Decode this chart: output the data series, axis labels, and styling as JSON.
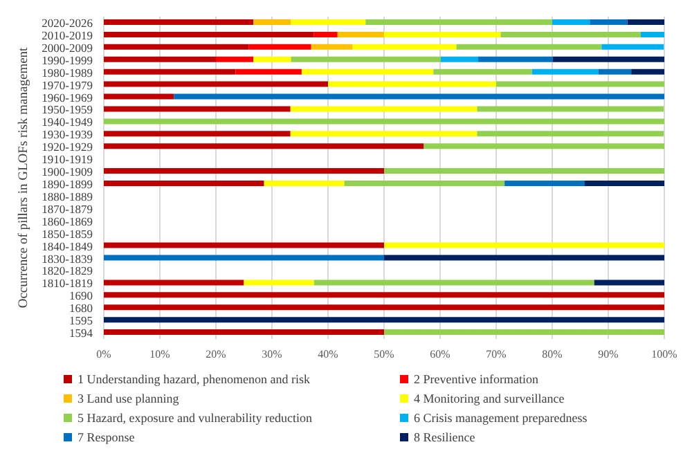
{
  "chart_data": {
    "type": "bar",
    "orientation": "horizontal",
    "stacked": true,
    "ylabel": "Occurrence of pillars in GLOFs risk management",
    "categories": [
      "2020-2026",
      "2010-2019",
      "2000-2009",
      "1990-1999",
      "1980-1989",
      "1970-1979",
      "1960-1969",
      "1950-1959",
      "1940-1949",
      "1930-1939",
      "1920-1929",
      "1910-1919",
      "1900-1909",
      "1890-1899",
      "1880-1889",
      "1870-1879",
      "1860-1869",
      "1850-1859",
      "1840-1849",
      "1830-1839",
      "1820-1829",
      "1810-1819",
      "1690",
      "1680",
      "1595",
      "1594"
    ],
    "series": [
      {
        "name": "1 Understanding hazard, phenomenon and risk",
        "color": "#c00000",
        "values": [
          26.7,
          37.5,
          25.9,
          20,
          23.5,
          40,
          12.5,
          33.3,
          0,
          33.3,
          57.1,
          0,
          50,
          28.6,
          0,
          0,
          0,
          0,
          50,
          0,
          0,
          25,
          100,
          100,
          0,
          50
        ]
      },
      {
        "name": "2 Preventive information",
        "color": "#ff0000",
        "values": [
          0,
          4.2,
          11.1,
          6.7,
          11.8,
          0,
          0,
          0,
          0,
          0,
          0,
          0,
          0,
          0,
          0,
          0,
          0,
          0,
          0,
          0,
          0,
          0,
          0,
          0,
          0,
          0
        ]
      },
      {
        "name": "3 Land use planning",
        "color": "#ffc000",
        "values": [
          6.7,
          8.3,
          7.4,
          0,
          0,
          0,
          0,
          0,
          0,
          0,
          0,
          0,
          0,
          0,
          0,
          0,
          0,
          0,
          0,
          0,
          0,
          0,
          0,
          0,
          0,
          0
        ]
      },
      {
        "name": "4 Monitoring and surveillance",
        "color": "#ffff00",
        "values": [
          13.3,
          20.8,
          18.5,
          6.7,
          23.5,
          30,
          0,
          33.3,
          0,
          33.3,
          0,
          0,
          0,
          14.3,
          0,
          0,
          0,
          0,
          50,
          0,
          0,
          12.5,
          0,
          0,
          0,
          0
        ]
      },
      {
        "name": "5 Hazard, exposure and vulnerability reduction",
        "color": "#92d050",
        "values": [
          33.3,
          25,
          25.9,
          26.7,
          17.6,
          30,
          0,
          33.3,
          100,
          33.3,
          42.9,
          0,
          50,
          28.6,
          0,
          0,
          0,
          0,
          0,
          0,
          0,
          50,
          0,
          0,
          0,
          50
        ]
      },
      {
        "name": "6 Crisis management preparedness",
        "color": "#00b0f0",
        "values": [
          6.7,
          4.2,
          11.1,
          6.7,
          11.8,
          0,
          0,
          0,
          0,
          0,
          0,
          0,
          0,
          0,
          0,
          0,
          0,
          0,
          0,
          0,
          0,
          0,
          0,
          0,
          0,
          0
        ]
      },
      {
        "name": "7 Response",
        "color": "#0070c0",
        "values": [
          6.7,
          0,
          0,
          13.3,
          5.9,
          0,
          87.5,
          0,
          0,
          0,
          0,
          0,
          0,
          14.3,
          0,
          0,
          0,
          0,
          0,
          50,
          0,
          0,
          0,
          0,
          0,
          0
        ]
      },
      {
        "name": "8 Resilience",
        "color": "#002060",
        "values": [
          6.7,
          0,
          0,
          20,
          5.9,
          0,
          0,
          0,
          0,
          0,
          0,
          0,
          0,
          14.3,
          0,
          0,
          0,
          0,
          0,
          50,
          0,
          12.5,
          0,
          0,
          100,
          0
        ]
      }
    ],
    "xlim": [
      0,
      100
    ],
    "xticks": [
      {
        "value": 0,
        "label": "0%"
      },
      {
        "value": 10,
        "label": "10%"
      },
      {
        "value": 20,
        "label": "20%"
      },
      {
        "value": 30,
        "label": "30%"
      },
      {
        "value": 40,
        "label": "40%"
      },
      {
        "value": 50,
        "label": "50%"
      },
      {
        "value": 60,
        "label": "60%"
      },
      {
        "value": 70,
        "label": "70%"
      },
      {
        "value": 80,
        "label": "80%"
      },
      {
        "value": 90,
        "label": "90%"
      },
      {
        "value": 100,
        "label": "100%"
      }
    ],
    "grid": "x",
    "legend": "bottom"
  }
}
